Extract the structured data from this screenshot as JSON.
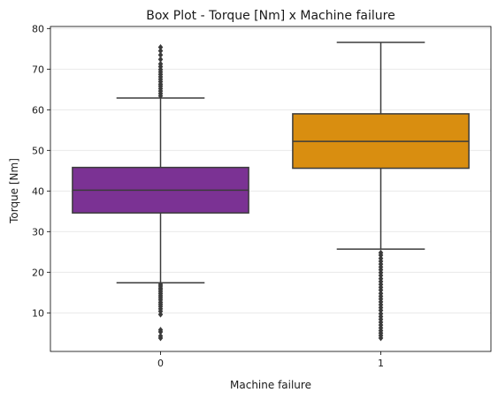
{
  "chart_data": {
    "type": "box",
    "title": "Box Plot - Torque [Nm] x Machine failure",
    "xlabel": "Machine failure",
    "ylabel": "Torque [Nm]",
    "ylim": [
      0.5,
      80.5
    ],
    "yticks": [
      10,
      20,
      30,
      40,
      50,
      60,
      70,
      80
    ],
    "grid": "horizontal",
    "categories": [
      "0",
      "1"
    ],
    "boxes": [
      {
        "category": "0",
        "color": "#7B3294",
        "whisker_low": 17.4,
        "q1": 34.6,
        "median": 40.2,
        "q3": 45.8,
        "whisker_high": 62.9,
        "outliers": [
          3.8,
          4.3,
          5.3,
          5.8,
          9.6,
          10.4,
          11.0,
          11.6,
          12.1,
          12.6,
          13.2,
          13.7,
          14.2,
          14.7,
          15.2,
          15.7,
          16.1,
          16.6,
          17.0,
          63.4,
          64.0,
          64.6,
          65.2,
          65.8,
          66.3,
          66.9,
          67.5,
          68.1,
          68.7,
          69.3,
          69.9,
          70.6,
          71.3,
          72.4,
          73.5,
          74.5,
          75.4
        ]
      },
      {
        "category": "1",
        "color": "#D98E10",
        "whisker_low": 25.7,
        "q1": 45.6,
        "median": 52.2,
        "q3": 59.0,
        "whisker_high": 76.6,
        "outliers": [
          3.8,
          4.4,
          5.0,
          5.6,
          6.3,
          7.0,
          7.7,
          8.4,
          9.1,
          9.8,
          10.6,
          11.3,
          12.0,
          12.7,
          13.4,
          14.1,
          14.8,
          15.6,
          16.3,
          17.0,
          17.7,
          18.4,
          19.2,
          19.9,
          20.6,
          21.3,
          22.0,
          22.7,
          23.4,
          24.2,
          24.8
        ]
      }
    ]
  }
}
